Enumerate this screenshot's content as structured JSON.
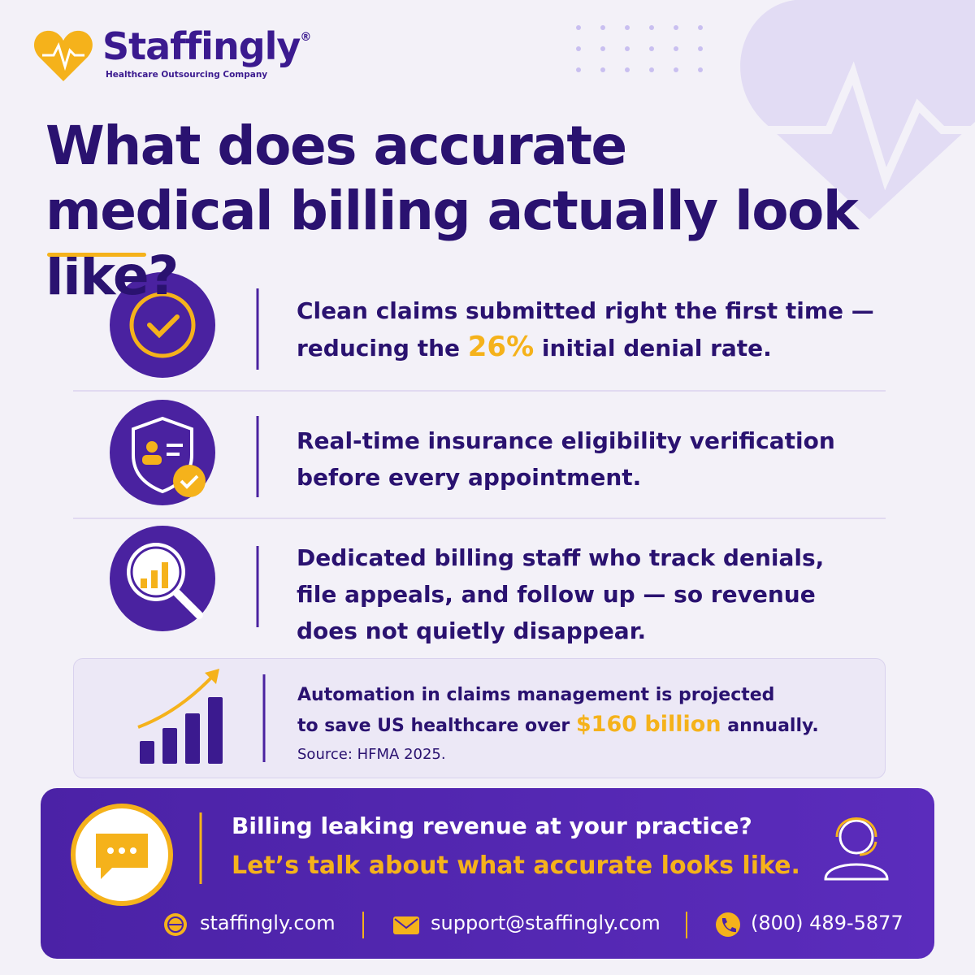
{
  "brand": {
    "name": "Staffingly",
    "registered": "®",
    "tagline": "Healthcare Outsourcing Company"
  },
  "headline": {
    "lines": [
      "What does accurate",
      "medical billing actually look like?"
    ]
  },
  "items": [
    {
      "lines": [
        {
          "text": "Clean claims submitted right the first time —"
        },
        {
          "before": "reducing the",
          "highlight": "26%",
          "after": "initial denial rate."
        }
      ]
    },
    {
      "lines": [
        {
          "text": "Real-time insurance eligibility verification"
        },
        {
          "text": "before every appointment."
        }
      ]
    },
    {
      "lines": [
        {
          "text": "Dedicated billing staff who track denials,"
        },
        {
          "text": "file appeals, and follow up — so revenue"
        },
        {
          "text": "does not quietly disappear."
        }
      ]
    }
  ],
  "stat": {
    "line1": "Automation in claims management is projected",
    "line2_before": "to save US healthcare over",
    "line2_highlight": "$160 billion",
    "line2_after": "annually.",
    "source": "Source: HFMA 2025."
  },
  "cta": {
    "question": "Billing leaking revenue at your practice?",
    "invite": "Let’s talk about what accurate looks like.",
    "contacts": {
      "website": "staffingly.com",
      "email": "support@staffingly.com",
      "phone": "(800) 489-5877"
    }
  }
}
